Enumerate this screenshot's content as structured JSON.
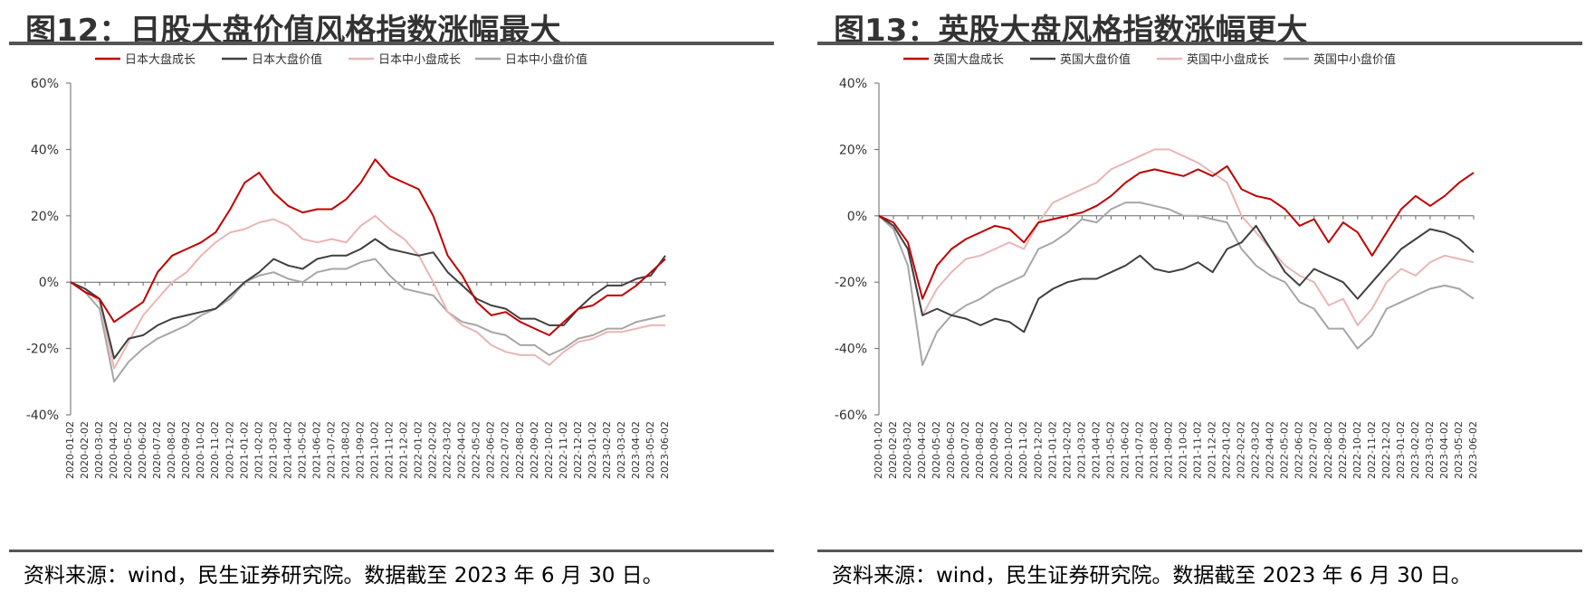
{
  "figures": [
    {
      "title": "图12：日股大盘价值风格指数涨幅最大",
      "source": "资料来源：wind，民生证券研究院。数据截至 2023 年 6 月 30 日。",
      "chart_data": {
        "type": "line",
        "legend": [
          "日本大盘成长",
          "日本大盘价值",
          "日本中小盘成长",
          "日本中小盘价值"
        ],
        "legend_position": "top",
        "grid": false,
        "ylim": [
          -40,
          60
        ],
        "y_ticks": [
          "60%",
          "40%",
          "20%",
          "0%",
          "-20%",
          "-40%"
        ],
        "x_ticks": [
          "2020-01-02",
          "2020-02-02",
          "2020-03-02",
          "2020-04-02",
          "2020-05-02",
          "2020-06-02",
          "2020-07-02",
          "2020-08-02",
          "2020-09-02",
          "2020-10-02",
          "2020-11-02",
          "2020-12-02",
          "2021-01-02",
          "2021-02-02",
          "2021-03-02",
          "2021-04-02",
          "2021-05-02",
          "2021-06-02",
          "2021-07-02",
          "2021-08-02",
          "2021-09-02",
          "2021-10-02",
          "2021-11-02",
          "2021-12-02",
          "2022-01-02",
          "2022-02-02",
          "2022-03-02",
          "2022-04-02",
          "2022-05-02",
          "2022-06-02",
          "2022-07-02",
          "2022-08-02",
          "2022-09-02",
          "2022-10-02",
          "2022-11-02",
          "2022-12-02",
          "2023-01-02",
          "2023-02-02",
          "2023-03-02",
          "2023-04-02",
          "2023-05-02",
          "2023-06-02"
        ],
        "series": [
          {
            "name": "日本大盘成长",
            "color": "#c00000",
            "values": [
              0,
              -3,
              -5,
              -12,
              -9,
              -6,
              3,
              8,
              10,
              12,
              15,
              22,
              30,
              33,
              27,
              23,
              21,
              22,
              22,
              25,
              30,
              37,
              32,
              30,
              28,
              20,
              8,
              2,
              -6,
              -10,
              -9,
              -12,
              -14,
              -16,
              -12,
              -8,
              -7,
              -4,
              -4,
              -1,
              3,
              7
            ]
          },
          {
            "name": "日本大盘价值",
            "color": "#404040",
            "values": [
              0,
              -2,
              -5,
              -23,
              -17,
              -16,
              -13,
              -11,
              -10,
              -9,
              -8,
              -4,
              0,
              3,
              7,
              5,
              4,
              7,
              8,
              8,
              10,
              13,
              10,
              9,
              8,
              9,
              3,
              -1,
              -5,
              -7,
              -8,
              -11,
              -11,
              -13,
              -13,
              -8,
              -4,
              -1,
              -1,
              1,
              2,
              8
            ]
          },
          {
            "name": "日本中小盘成长",
            "color": "#eab5b5",
            "values": [
              0,
              -2,
              -6,
              -26,
              -18,
              -10,
              -5,
              0,
              3,
              8,
              12,
              15,
              16,
              18,
              19,
              17,
              13,
              12,
              13,
              12,
              17,
              20,
              16,
              13,
              8,
              0,
              -9,
              -13,
              -15,
              -19,
              -21,
              -22,
              -22,
              -25,
              -21,
              -18,
              -17,
              -15,
              -15,
              -14,
              -13,
              -13
            ]
          },
          {
            "name": "日本中小盘价值",
            "color": "#a6a6a6",
            "values": [
              0,
              -3,
              -8,
              -30,
              -24,
              -20,
              -17,
              -15,
              -13,
              -10,
              -8,
              -5,
              0,
              2,
              3,
              1,
              0,
              3,
              4,
              4,
              6,
              7,
              2,
              -2,
              -3,
              -4,
              -9,
              -12,
              -13,
              -15,
              -16,
              -19,
              -19,
              -22,
              -20,
              -17,
              -16,
              -14,
              -14,
              -12,
              -11,
              -10
            ]
          }
        ]
      }
    },
    {
      "title": "图13：英股大盘风格指数涨幅更大",
      "source": "资料来源：wind，民生证券研究院。数据截至 2023 年 6 月 30 日。",
      "chart_data": {
        "type": "line",
        "legend": [
          "英国大盘成长",
          "英国大盘价值",
          "英国中小盘成长",
          "英国中小盘价值"
        ],
        "legend_position": "top",
        "grid": false,
        "ylim": [
          -60,
          40
        ],
        "y_ticks": [
          "40%",
          "20%",
          "0%",
          "-20%",
          "-40%",
          "-60%"
        ],
        "x_ticks": [
          "2020-01-02",
          "2020-02-02",
          "2020-03-02",
          "2020-04-02",
          "2020-05-02",
          "2020-06-02",
          "2020-07-02",
          "2020-08-02",
          "2020-09-02",
          "2020-10-02",
          "2020-11-02",
          "2020-12-02",
          "2021-01-02",
          "2021-02-02",
          "2021-03-02",
          "2021-04-02",
          "2021-05-02",
          "2021-06-02",
          "2021-07-02",
          "2021-08-02",
          "2021-09-02",
          "2021-10-02",
          "2021-11-02",
          "2021-12-02",
          "2022-01-02",
          "2022-02-02",
          "2022-03-02",
          "2022-04-02",
          "2022-05-02",
          "2022-06-02",
          "2022-07-02",
          "2022-08-02",
          "2022-09-02",
          "2022-10-02",
          "2022-11-02",
          "2022-12-02",
          "2023-01-02",
          "2023-02-02",
          "2023-03-02",
          "2023-04-02",
          "2023-05-02",
          "2023-06-02"
        ],
        "series": [
          {
            "name": "英国大盘成长",
            "color": "#c00000",
            "values": [
              0,
              -2,
              -8,
              -25,
              -15,
              -10,
              -7,
              -5,
              -3,
              -4,
              -8,
              -2,
              -1,
              0,
              1,
              3,
              6,
              10,
              13,
              14,
              13,
              12,
              14,
              12,
              15,
              8,
              6,
              5,
              2,
              -3,
              -1,
              -8,
              -2,
              -5,
              -12,
              -5,
              2,
              6,
              3,
              6,
              10,
              13
            ]
          },
          {
            "name": "英国大盘价值",
            "color": "#404040",
            "values": [
              0,
              -3,
              -10,
              -30,
              -28,
              -30,
              -31,
              -33,
              -31,
              -32,
              -35,
              -25,
              -22,
              -20,
              -19,
              -19,
              -17,
              -15,
              -12,
              -16,
              -17,
              -16,
              -14,
              -17,
              -10,
              -8,
              -3,
              -10,
              -17,
              -21,
              -16,
              -18,
              -20,
              -25,
              -20,
              -15,
              -10,
              -7,
              -4,
              -5,
              -7,
              -11
            ]
          },
          {
            "name": "英国中小盘成长",
            "color": "#eab5b5",
            "values": [
              0,
              -3,
              -10,
              -30,
              -22,
              -17,
              -13,
              -12,
              -10,
              -8,
              -10,
              -2,
              4,
              6,
              8,
              10,
              14,
              16,
              18,
              20,
              20,
              18,
              16,
              13,
              10,
              0,
              -5,
              -10,
              -15,
              -18,
              -20,
              -27,
              -25,
              -33,
              -28,
              -20,
              -16,
              -18,
              -14,
              -12,
              -13,
              -14
            ]
          },
          {
            "name": "英国中小盘价值",
            "color": "#a6a6a6",
            "values": [
              0,
              -4,
              -15,
              -45,
              -35,
              -30,
              -27,
              -25,
              -22,
              -20,
              -18,
              -10,
              -8,
              -5,
              -1,
              -2,
              2,
              4,
              4,
              3,
              2,
              0,
              0,
              -1,
              -2,
              -10,
              -15,
              -18,
              -20,
              -26,
              -28,
              -34,
              -34,
              -40,
              -36,
              -28,
              -26,
              -24,
              -22,
              -21,
              -22,
              -25
            ]
          }
        ]
      }
    }
  ]
}
